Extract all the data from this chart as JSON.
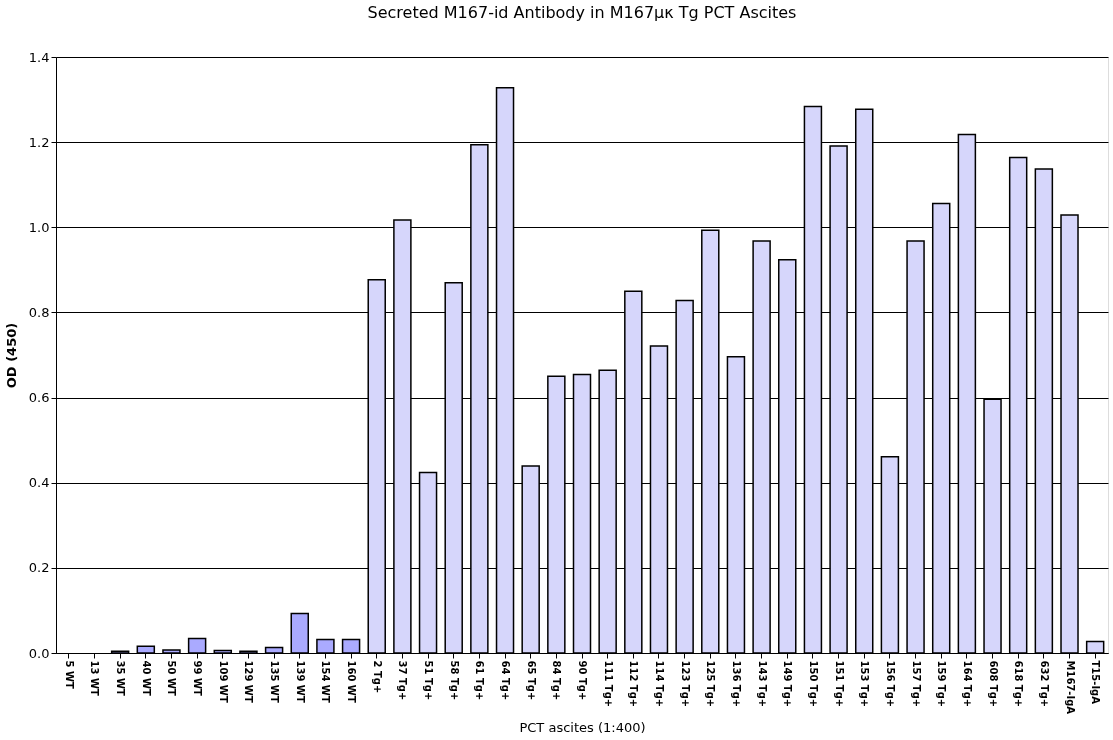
{
  "chart_data": {
    "type": "bar",
    "title": "Secreted M167-id Antibody in M167μκ Tg PCT Ascites",
    "xlabel": "PCT ascites (1:400)",
    "ylabel": "OD (450)",
    "categories": [
      "5 WT",
      "13 WT",
      "35 WT",
      "40 WT",
      "50 WT",
      "99 WT",
      "109 WT",
      "129 WT",
      "135 WT",
      "139 WT",
      "154 WT",
      "160 WT",
      "2 Tg+",
      "37 Tg+",
      "51 Tg+",
      "58 Tg+",
      "61 Tg+",
      "64 Tg+",
      "65 Tg+",
      "84 Tg+",
      "90 Tg+",
      "111 Tg+",
      "112 Tg+",
      "114 Tg+",
      "123 Tg+",
      "125 Tg+",
      "136 Tg+",
      "143 Tg+",
      "149 Tg+",
      "150 Tg+",
      "151 Tg+",
      "153 Tg+",
      "156 Tg+",
      "157 Tg+",
      "159 Tg+",
      "164 Tg+",
      "608 Tg+",
      "618 Tg+",
      "632 Tg+",
      "M167-IgA",
      "T15-IgA"
    ],
    "values": [
      null,
      null,
      0.004,
      0.016,
      0.007,
      0.034,
      0.006,
      0.004,
      0.013,
      0.093,
      0.032,
      0.032,
      0.877,
      1.017,
      0.424,
      0.87,
      1.194,
      1.328,
      0.439,
      0.65,
      0.654,
      0.664,
      0.85,
      0.721,
      0.828,
      0.993,
      0.696,
      0.968,
      0.924,
      1.284,
      1.191,
      1.277,
      0.461,
      0.968,
      1.056,
      1.218,
      0.596,
      1.164,
      1.137,
      1.029,
      0.027
    ],
    "colors": [
      "#aaaaff",
      "#aaaaff",
      "#aaaaff",
      "#aaaaff",
      "#aaaaff",
      "#aaaaff",
      "#aaaaff",
      "#aaaaff",
      "#aaaaff",
      "#aaaaff",
      "#aaaaff",
      "#aaaaff",
      "#d6d6fb",
      "#d6d6fb",
      "#d6d6fb",
      "#d6d6fb",
      "#d6d6fb",
      "#d6d6fb",
      "#d6d6fb",
      "#d6d6fb",
      "#d6d6fb",
      "#d6d6fb",
      "#d6d6fb",
      "#d6d6fb",
      "#d6d6fb",
      "#d6d6fb",
      "#d6d6fb",
      "#d6d6fb",
      "#d6d6fb",
      "#d6d6fb",
      "#d6d6fb",
      "#d6d6fb",
      "#d6d6fb",
      "#d6d6fb",
      "#d6d6fb",
      "#d6d6fb",
      "#d6d6fb",
      "#d6d6fb",
      "#d6d6fb",
      "#d6d6fb",
      "#d6d6fb"
    ],
    "ylim": [
      0,
      1.4
    ],
    "yticks": [
      {
        "value": 0,
        "label": "0.0"
      },
      {
        "value": 0.2,
        "label": "0.2"
      },
      {
        "value": 0.4,
        "label": "0.4"
      },
      {
        "value": 0.6,
        "label": "0.6"
      },
      {
        "value": 0.8,
        "label": "0.8"
      },
      {
        "value": 1,
        "label": "1.0"
      },
      {
        "value": 1.2,
        "label": "1.2"
      },
      {
        "value": 1.4,
        "label": "1.4"
      }
    ],
    "grid": "y"
  }
}
